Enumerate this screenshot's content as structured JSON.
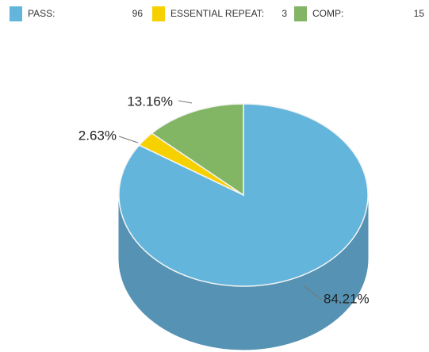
{
  "chart_data": {
    "type": "pie3d",
    "categories": [
      "PASS:",
      "ESSENTIAL REPEAT:",
      "COMP:"
    ],
    "values": [
      96,
      3,
      15
    ],
    "percentages": [
      {
        "value": 84.21,
        "label": "84.21%"
      },
      {
        "value": 2.63,
        "label": "2.63%"
      },
      {
        "value": 13.16,
        "label": "13.16%"
      }
    ],
    "colors": [
      "#63b5dc",
      "#f7d000",
      "#82b564"
    ],
    "side_colors": [
      "#5592b3",
      "#c9a900",
      "#6b9552"
    ]
  }
}
